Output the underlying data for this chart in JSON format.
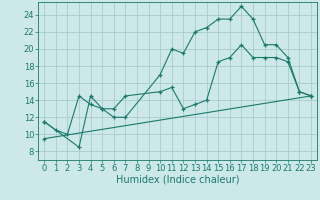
{
  "background_color": "#cce8e8",
  "grid_color": "#aacccc",
  "line_color": "#1a7a6a",
  "xlabel": "Humidex (Indice chaleur)",
  "xlim": [
    -0.5,
    23.5
  ],
  "ylim": [
    7,
    25.5
  ],
  "yticks": [
    8,
    10,
    12,
    14,
    16,
    18,
    20,
    22,
    24
  ],
  "xticks": [
    0,
    1,
    2,
    3,
    4,
    5,
    6,
    7,
    8,
    9,
    10,
    11,
    12,
    13,
    14,
    15,
    16,
    17,
    18,
    19,
    20,
    21,
    22,
    23
  ],
  "series1": {
    "x": [
      0,
      1,
      2,
      3,
      4,
      5,
      6,
      7,
      10,
      11,
      12,
      13,
      14,
      15,
      16,
      17,
      18,
      19,
      20,
      21,
      22,
      23
    ],
    "y": [
      11.5,
      10.5,
      10.0,
      14.5,
      13.5,
      13.0,
      12.0,
      12.0,
      17.0,
      20.0,
      19.5,
      22.0,
      22.5,
      23.5,
      23.5,
      25.0,
      23.5,
      20.5,
      20.5,
      19.0,
      15.0,
      14.5
    ]
  },
  "series2": {
    "x": [
      0,
      3,
      4,
      5,
      6,
      7,
      10,
      11,
      12,
      13,
      14,
      15,
      16,
      17,
      18,
      19,
      20,
      21,
      22,
      23
    ],
    "y": [
      11.5,
      8.5,
      14.5,
      13.0,
      13.0,
      14.5,
      15.0,
      15.5,
      13.0,
      13.5,
      14.0,
      18.5,
      19.0,
      20.5,
      19.0,
      19.0,
      19.0,
      18.5,
      15.0,
      14.5
    ]
  },
  "series3": {
    "x": [
      0,
      23
    ],
    "y": [
      9.5,
      14.5
    ]
  },
  "xlabel_fontsize": 7,
  "tick_labelsize": 6,
  "linewidth": 0.8,
  "markersize": 3.5
}
